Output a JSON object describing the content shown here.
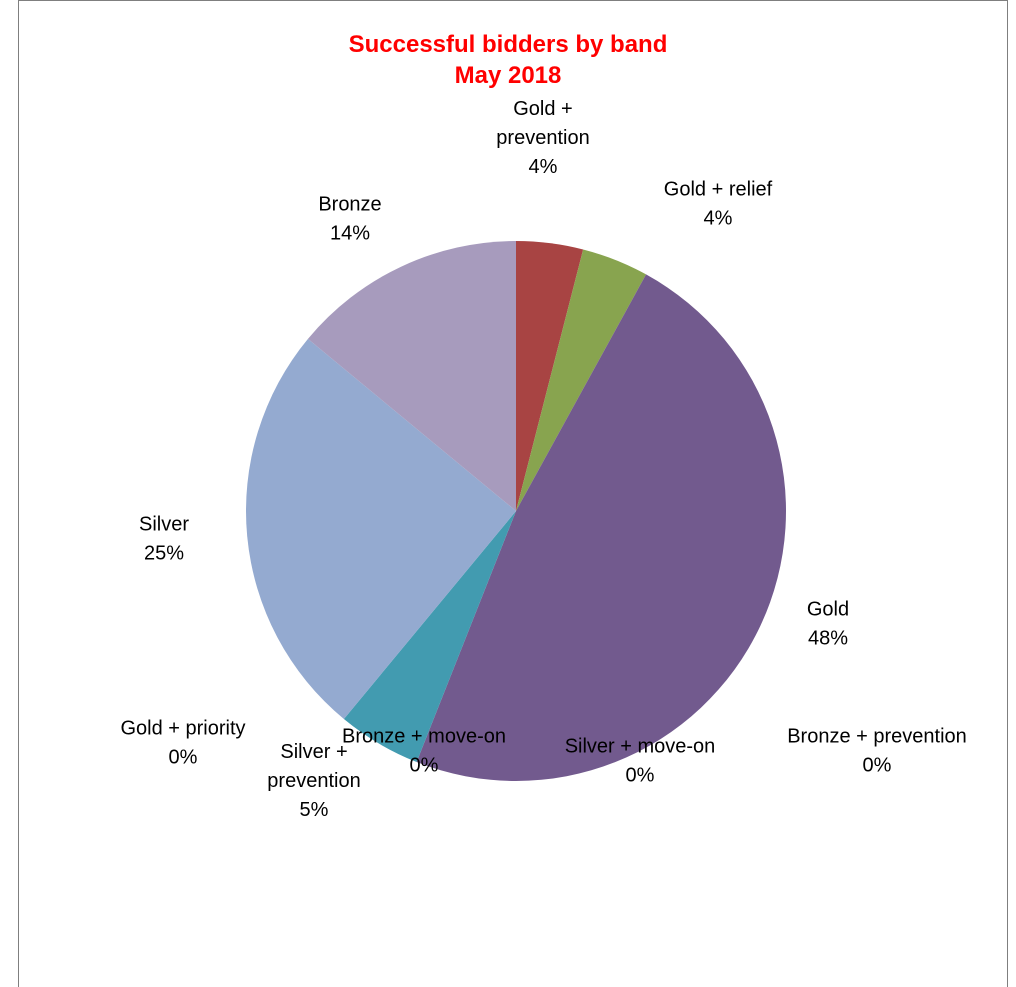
{
  "chart_data": {
    "type": "pie",
    "title": "Successful bidders by band",
    "subtitle": "May 2018",
    "title_color": "#ff0000",
    "slices": [
      {
        "label": [
          "Gold +",
          "prevention"
        ],
        "pct_text": "4%",
        "value": 4,
        "color": "#a84443"
      },
      {
        "label": [
          "Gold + relief"
        ],
        "pct_text": "4%",
        "value": 4,
        "color": "#88a44f"
      },
      {
        "label": [
          "Gold"
        ],
        "pct_text": "48%",
        "value": 48,
        "color": "#725a8e"
      },
      {
        "label": [
          "Silver +",
          "prevention"
        ],
        "pct_text": "5%",
        "value": 5,
        "color": "#429bb0"
      },
      {
        "label": [
          "Silver"
        ],
        "pct_text": "25%",
        "value": 25,
        "color": "#94aad0"
      },
      {
        "label": [
          "Bronze"
        ],
        "pct_text": "14%",
        "value": 14,
        "color": "#a79bbd"
      },
      {
        "label": [
          "Gold + priority"
        ],
        "pct_text": "0%",
        "value": 0,
        "color": "#725a8e"
      },
      {
        "label": [
          "Bronze + move-on"
        ],
        "pct_text": "0%",
        "value": 0,
        "color": "#94aad0"
      },
      {
        "label": [
          "Silver + move-on"
        ],
        "pct_text": "0%",
        "value": 0,
        "color": "#a79bbd"
      },
      {
        "label": [
          "Bronze + prevention"
        ],
        "pct_text": "0%",
        "value": 0,
        "color": "#429bb0"
      }
    ]
  }
}
